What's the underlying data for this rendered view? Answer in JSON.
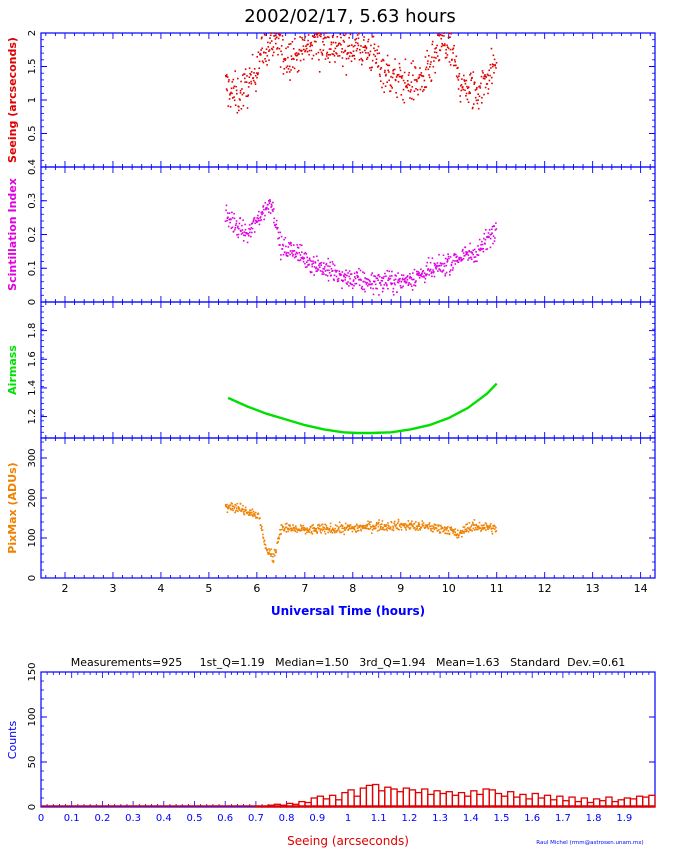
{
  "title": "2002/02/17, 5.63 hours",
  "time_axis": {
    "label": "Universal Time (hours)",
    "range": [
      1.5,
      14.3
    ],
    "ticks": [
      2,
      3,
      4,
      5,
      6,
      7,
      8,
      9,
      10,
      11,
      12,
      13,
      14
    ]
  },
  "stats_line": "Measurements=925     1st_Q=1.19   Median=1.50   3rd_Q=1.94   Mean=1.63   Standard  Dev.=0.61",
  "credit": "Raul Michel (rmm@astrosen.unam.mx)",
  "colors": {
    "axes": "#0000ff",
    "seeing": "#e00000",
    "scint": "#e000e0",
    "airmass": "#00e000",
    "pixmax": "#f08000",
    "hist": "#e00000"
  },
  "chart_data": [
    {
      "type": "scatter",
      "id": "seeing",
      "ylabel": "Seeing (arcseconds)",
      "ylim": [
        0,
        2
      ],
      "yticks": [
        "0.5",
        "1",
        "1.5",
        "2"
      ],
      "ytick_values": [
        0.5,
        1,
        1.5,
        2
      ],
      "x_range": [
        5.35,
        11.0
      ],
      "trend": [
        [
          5.35,
          1.2
        ],
        [
          5.6,
          1.05
        ],
        [
          5.9,
          1.3
        ],
        [
          6.1,
          1.75
        ],
        [
          6.4,
          1.85
        ],
        [
          6.6,
          1.6
        ],
        [
          6.9,
          1.7
        ],
        [
          7.2,
          1.9
        ],
        [
          7.5,
          1.8
        ],
        [
          7.8,
          1.75
        ],
        [
          8.1,
          1.8
        ],
        [
          8.4,
          1.7
        ],
        [
          8.7,
          1.4
        ],
        [
          8.9,
          1.3
        ],
        [
          9.2,
          1.25
        ],
        [
          9.5,
          1.3
        ],
        [
          9.7,
          1.6
        ],
        [
          9.9,
          1.85
        ],
        [
          10.1,
          1.6
        ],
        [
          10.3,
          1.15
        ],
        [
          10.6,
          1.1
        ],
        [
          10.8,
          1.35
        ],
        [
          11.0,
          1.55
        ]
      ]
    },
    {
      "type": "scatter",
      "id": "scintillation",
      "ylabel": "Scintillation Index",
      "ylim": [
        0,
        0.4
      ],
      "yticks": [
        "0",
        "0.1",
        "0.2",
        "0.3",
        "0.4"
      ],
      "ytick_values": [
        0,
        0.1,
        0.2,
        0.3,
        0.4
      ],
      "x_range": [
        5.35,
        11.0
      ],
      "trend": [
        [
          5.35,
          0.26
        ],
        [
          5.6,
          0.22
        ],
        [
          5.8,
          0.2
        ],
        [
          6.0,
          0.24
        ],
        [
          6.3,
          0.3
        ],
        [
          6.5,
          0.16
        ],
        [
          6.8,
          0.15
        ],
        [
          7.1,
          0.12
        ],
        [
          7.4,
          0.1
        ],
        [
          7.8,
          0.07
        ],
        [
          8.2,
          0.06
        ],
        [
          8.6,
          0.06
        ],
        [
          9.0,
          0.06
        ],
        [
          9.4,
          0.08
        ],
        [
          9.8,
          0.1
        ],
        [
          10.2,
          0.13
        ],
        [
          10.6,
          0.15
        ],
        [
          11.0,
          0.22
        ]
      ]
    },
    {
      "type": "line",
      "id": "airmass",
      "ylabel": "Airmass",
      "ylim": [
        1.05,
        2.0
      ],
      "yticks": [
        "1.2",
        "1.4",
        "1.6",
        "1.8"
      ],
      "ytick_values": [
        1.2,
        1.4,
        1.6,
        1.8
      ],
      "x": [
        5.4,
        5.8,
        6.2,
        6.6,
        7.0,
        7.4,
        7.8,
        8.1,
        8.4,
        8.8,
        9.2,
        9.6,
        10.0,
        10.4,
        10.8,
        11.0
      ],
      "y": [
        1.33,
        1.27,
        1.22,
        1.18,
        1.14,
        1.11,
        1.09,
        1.085,
        1.085,
        1.09,
        1.11,
        1.14,
        1.19,
        1.26,
        1.36,
        1.43
      ]
    },
    {
      "type": "scatter",
      "id": "pixmax",
      "ylabel": "PixMax (ADUs)",
      "ylim": [
        0,
        350
      ],
      "yticks": [
        "0",
        "100",
        "200",
        "300"
      ],
      "ytick_values": [
        0,
        100,
        200,
        300
      ],
      "x_range": [
        5.35,
        11.0
      ],
      "trend": [
        [
          5.35,
          185
        ],
        [
          5.6,
          175
        ],
        [
          5.9,
          165
        ],
        [
          6.05,
          150
        ],
        [
          6.2,
          70
        ],
        [
          6.35,
          50
        ],
        [
          6.5,
          125
        ],
        [
          7.0,
          120
        ],
        [
          7.5,
          122
        ],
        [
          8.0,
          125
        ],
        [
          8.5,
          130
        ],
        [
          9.0,
          132
        ],
        [
          9.5,
          128
        ],
        [
          10.0,
          122
        ],
        [
          10.2,
          105
        ],
        [
          10.4,
          128
        ],
        [
          10.8,
          128
        ],
        [
          11.0,
          122
        ]
      ]
    },
    {
      "type": "bar",
      "id": "histogram",
      "xlabel": "Seeing (arcseconds)",
      "ylabel": "Counts",
      "xlim": [
        0,
        2.0
      ],
      "ylim": [
        0,
        150
      ],
      "xticks": [
        "0",
        "0.1",
        "0.2",
        "0.3",
        "0.4",
        "0.5",
        "0.6",
        "0.7",
        "0.8",
        "0.9",
        "1",
        "1.1",
        "1.2",
        "1.3",
        "1.4",
        "1.5",
        "1.6",
        "1.7",
        "1.8",
        "1.9"
      ],
      "yticks": [
        "0",
        "50",
        "100",
        "150"
      ],
      "ytick_values": [
        0,
        50,
        100,
        150
      ],
      "bin_width": 0.02,
      "bin_starts": [
        0.7,
        0.72,
        0.74,
        0.76,
        0.78,
        0.8,
        0.82,
        0.84,
        0.86,
        0.88,
        0.9,
        0.92,
        0.94,
        0.96,
        0.98,
        1.0,
        1.02,
        1.04,
        1.06,
        1.08,
        1.1,
        1.12,
        1.14,
        1.16,
        1.18,
        1.2,
        1.22,
        1.24,
        1.26,
        1.28,
        1.3,
        1.32,
        1.34,
        1.36,
        1.38,
        1.4,
        1.42,
        1.44,
        1.46,
        1.48,
        1.5,
        1.52,
        1.54,
        1.56,
        1.58,
        1.6,
        1.62,
        1.64,
        1.66,
        1.68,
        1.7,
        1.72,
        1.74,
        1.76,
        1.78,
        1.8,
        1.82,
        1.84,
        1.86,
        1.88,
        1.9,
        1.92,
        1.94,
        1.96,
        1.98
      ],
      "values": [
        1,
        1,
        2,
        3,
        2,
        4,
        3,
        6,
        5,
        10,
        12,
        9,
        13,
        8,
        16,
        19,
        12,
        21,
        24,
        25,
        18,
        22,
        20,
        17,
        21,
        19,
        16,
        20,
        14,
        18,
        15,
        17,
        13,
        16,
        12,
        18,
        14,
        20,
        19,
        15,
        12,
        17,
        11,
        14,
        9,
        15,
        10,
        13,
        8,
        12,
        7,
        11,
        6,
        10,
        5,
        9,
        7,
        11,
        6,
        8,
        10,
        9,
        12,
        11,
        13
      ]
    }
  ]
}
